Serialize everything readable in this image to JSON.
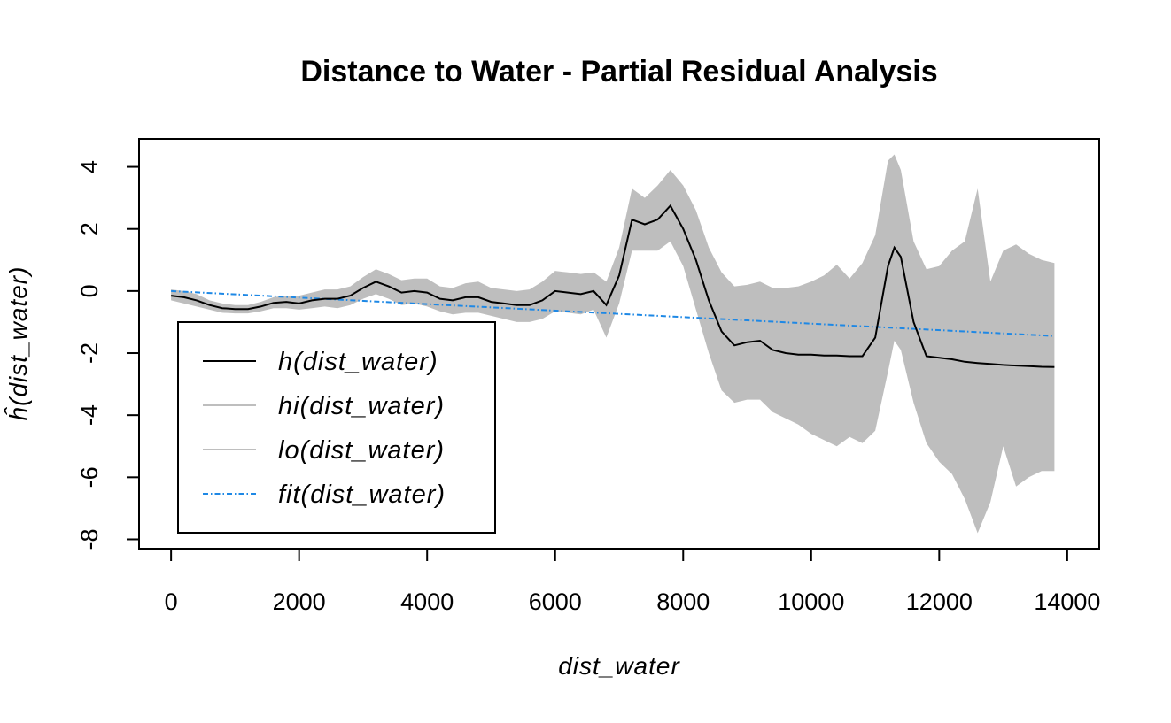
{
  "chart_data": {
    "type": "line",
    "title": "Distance to Water - Partial Residual Analysis",
    "xlabel": "dist_water",
    "ylabel": "ĥ(dist_water)",
    "xlim": [
      -500,
      14500
    ],
    "ylim": [
      -8.3,
      4.9
    ],
    "x_ticks": [
      0,
      2000,
      4000,
      6000,
      8000,
      10000,
      12000,
      14000
    ],
    "y_ticks": [
      -8,
      -6,
      -4,
      -2,
      0,
      2,
      4
    ],
    "legend_position": "bottom-left",
    "colors": {
      "h": "#000000",
      "band": "#bebebe",
      "fit": "#1e88e5"
    },
    "series": [
      {
        "name": "h(dist_water)",
        "x": [
          0,
          200,
          400,
          600,
          800,
          1000,
          1200,
          1400,
          1600,
          1800,
          2000,
          2200,
          2400,
          2600,
          2800,
          3000,
          3200,
          3400,
          3600,
          3800,
          4000,
          4200,
          4400,
          4600,
          4800,
          5000,
          5200,
          5400,
          5600,
          5800,
          6000,
          6200,
          6400,
          6600,
          6800,
          7000,
          7200,
          7400,
          7600,
          7800,
          8000,
          8200,
          8400,
          8600,
          8800,
          9000,
          9200,
          9400,
          9600,
          9800,
          10000,
          10200,
          10400,
          10600,
          10800,
          11000,
          11200,
          11300,
          11400,
          11600,
          11800,
          12000,
          12200,
          12400,
          12600,
          12800,
          13000,
          13200,
          13400,
          13600,
          13800
        ],
        "values": [
          -0.15,
          -0.2,
          -0.3,
          -0.45,
          -0.55,
          -0.58,
          -0.58,
          -0.5,
          -0.38,
          -0.35,
          -0.4,
          -0.3,
          -0.25,
          -0.25,
          -0.15,
          0.1,
          0.3,
          0.15,
          -0.05,
          0.0,
          -0.05,
          -0.25,
          -0.3,
          -0.2,
          -0.2,
          -0.35,
          -0.4,
          -0.45,
          -0.45,
          -0.3,
          0.0,
          -0.05,
          -0.1,
          0.0,
          -0.45,
          0.5,
          2.3,
          2.15,
          2.3,
          2.75,
          2.0,
          1.0,
          -0.3,
          -1.3,
          -1.75,
          -1.65,
          -1.6,
          -1.9,
          -2.0,
          -2.05,
          -2.05,
          -2.08,
          -2.08,
          -2.1,
          -2.1,
          -1.5,
          0.8,
          1.4,
          1.1,
          -1.0,
          -2.1,
          -2.15,
          -2.2,
          -2.28,
          -2.32,
          -2.35,
          -2.38,
          -2.4,
          -2.42,
          -2.44,
          -2.45
        ]
      },
      {
        "name": "hi(dist_water)",
        "x": [
          0,
          200,
          400,
          600,
          800,
          1000,
          1200,
          1400,
          1600,
          1800,
          2000,
          2200,
          2400,
          2600,
          2800,
          3000,
          3200,
          3400,
          3600,
          3800,
          4000,
          4200,
          4400,
          4600,
          4800,
          5000,
          5200,
          5400,
          5600,
          5800,
          6000,
          6200,
          6400,
          6600,
          6800,
          7000,
          7200,
          7400,
          7600,
          7800,
          8000,
          8200,
          8400,
          8600,
          8800,
          9000,
          9200,
          9400,
          9600,
          9800,
          10000,
          10200,
          10400,
          10600,
          10800,
          11000,
          11200,
          11300,
          11400,
          11600,
          11800,
          12000,
          12200,
          12400,
          12600,
          12800,
          13000,
          13200,
          13400,
          13600,
          13800
        ],
        "values": [
          0.05,
          0.0,
          -0.1,
          -0.3,
          -0.4,
          -0.45,
          -0.45,
          -0.35,
          -0.2,
          -0.15,
          -0.15,
          -0.05,
          0.05,
          0.05,
          0.15,
          0.45,
          0.7,
          0.55,
          0.35,
          0.4,
          0.4,
          0.15,
          0.1,
          0.25,
          0.3,
          0.1,
          0.05,
          0.0,
          0.05,
          0.3,
          0.65,
          0.6,
          0.55,
          0.6,
          0.3,
          1.4,
          3.3,
          3.0,
          3.4,
          3.9,
          3.4,
          2.6,
          1.4,
          0.6,
          0.15,
          0.2,
          0.3,
          0.1,
          0.1,
          0.15,
          0.3,
          0.5,
          0.85,
          0.4,
          0.9,
          1.8,
          4.2,
          4.4,
          3.9,
          1.6,
          0.7,
          0.8,
          1.3,
          1.6,
          3.3,
          0.3,
          1.3,
          1.5,
          1.2,
          1.0,
          0.9
        ]
      },
      {
        "name": "lo(dist_water)",
        "x": [
          0,
          200,
          400,
          600,
          800,
          1000,
          1200,
          1400,
          1600,
          1800,
          2000,
          2200,
          2400,
          2600,
          2800,
          3000,
          3200,
          3400,
          3600,
          3800,
          4000,
          4200,
          4400,
          4600,
          4800,
          5000,
          5200,
          5400,
          5600,
          5800,
          6000,
          6200,
          6400,
          6600,
          6800,
          7000,
          7200,
          7400,
          7600,
          7800,
          8000,
          8200,
          8400,
          8600,
          8800,
          9000,
          9200,
          9400,
          9600,
          9800,
          10000,
          10200,
          10400,
          10600,
          10800,
          11000,
          11200,
          11300,
          11400,
          11600,
          11800,
          12000,
          12200,
          12400,
          12600,
          12800,
          13000,
          13200,
          13400,
          13600,
          13800
        ],
        "values": [
          -0.3,
          -0.4,
          -0.5,
          -0.6,
          -0.7,
          -0.72,
          -0.72,
          -0.65,
          -0.55,
          -0.55,
          -0.6,
          -0.55,
          -0.5,
          -0.55,
          -0.45,
          -0.25,
          -0.1,
          -0.25,
          -0.45,
          -0.4,
          -0.5,
          -0.65,
          -0.75,
          -0.7,
          -0.7,
          -0.8,
          -0.9,
          -1.0,
          -1.0,
          -0.9,
          -0.65,
          -0.7,
          -0.75,
          -0.6,
          -1.5,
          -0.4,
          1.3,
          1.3,
          1.3,
          1.6,
          0.8,
          -0.6,
          -2.0,
          -3.2,
          -3.6,
          -3.5,
          -3.5,
          -3.9,
          -4.1,
          -4.3,
          -4.6,
          -4.8,
          -5.0,
          -4.7,
          -4.9,
          -4.5,
          -2.6,
          -1.6,
          -1.9,
          -3.6,
          -4.9,
          -5.5,
          -5.9,
          -6.7,
          -7.8,
          -6.8,
          -5.0,
          -6.3,
          -6.0,
          -5.8,
          -5.8
        ]
      },
      {
        "name": "fit(dist_water)",
        "x": [
          0,
          13800
        ],
        "values": [
          0.0,
          -1.45
        ]
      }
    ],
    "legend": [
      "h(dist_water)",
      "hi(dist_water)",
      "lo(dist_water)",
      "fit(dist_water)"
    ]
  }
}
